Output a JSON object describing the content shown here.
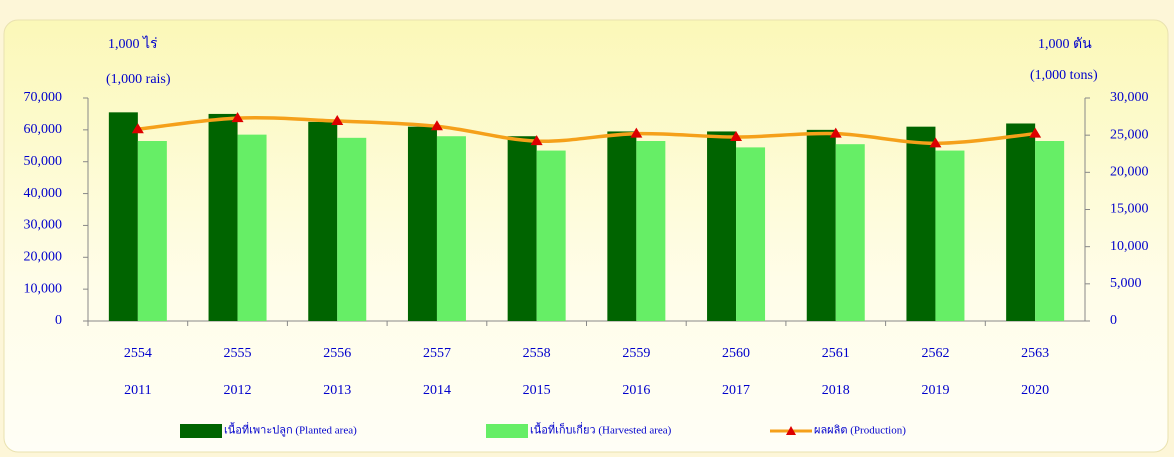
{
  "chart_data": {
    "type": "bar",
    "y_label": [
      "1,000 ไร่",
      "(1,000 rais)"
    ],
    "y2_label": [
      "1,000 ตัน",
      "(1,000 tons)"
    ],
    "categories": [
      [
        "2554",
        "2011"
      ],
      [
        "2555",
        "2012"
      ],
      [
        "2556",
        "2013"
      ],
      [
        "2557",
        "2014"
      ],
      [
        "2558",
        "2015"
      ],
      [
        "2559",
        "2016"
      ],
      [
        "2560",
        "2017"
      ],
      [
        "2561",
        "2018"
      ],
      [
        "2562",
        "2019"
      ],
      [
        "2563",
        "2020"
      ]
    ],
    "series": [
      {
        "name": "เนื้อที่เพาะปลูก (Planted area)",
        "type": "bar",
        "color": "#006400",
        "values": [
          65500,
          65000,
          62500,
          61000,
          58000,
          59500,
          59500,
          60000,
          61000,
          62000
        ]
      },
      {
        "name": "เนื้อที่เก็บเกี่ยว (Harvested area)",
        "type": "bar",
        "color": "#66ee66",
        "values": [
          56500,
          58500,
          57500,
          58000,
          53500,
          56500,
          54500,
          55500,
          53500,
          56500
        ]
      },
      {
        "name": "ผลผลิต (Production)",
        "type": "line",
        "axis": "y2",
        "color": "#f5a01a",
        "marker_color": "#dd0000",
        "values": [
          25800,
          27300,
          26900,
          26200,
          24200,
          25200,
          24750,
          25200,
          23900,
          25200
        ]
      }
    ],
    "ylim": [
      0,
      70000
    ],
    "yticks": [
      0,
      {
        "value": 10000,
        "label": "10,000"
      },
      {
        "value": 20000,
        "label": "20,000"
      },
      {
        "value": 30000,
        "label": "30,000"
      },
      {
        "value": 40000,
        "label": "40,000"
      },
      {
        "value": 50000,
        "label": "50,000"
      },
      {
        "value": 60000,
        "label": "60,000"
      },
      {
        "value": 70000,
        "label": "70,000"
      }
    ],
    "y2lim": [
      0,
      30000
    ],
    "y2ticks": [
      0,
      {
        "value": 5000,
        "label": "5,000"
      },
      {
        "value": 10000,
        "label": "10,000"
      },
      {
        "value": 15000,
        "label": "15,000"
      },
      {
        "value": 20000,
        "label": "20,000"
      },
      {
        "value": 25000,
        "label": "25,000"
      },
      {
        "value": 30000,
        "label": "30,000"
      }
    ],
    "grid": false
  }
}
